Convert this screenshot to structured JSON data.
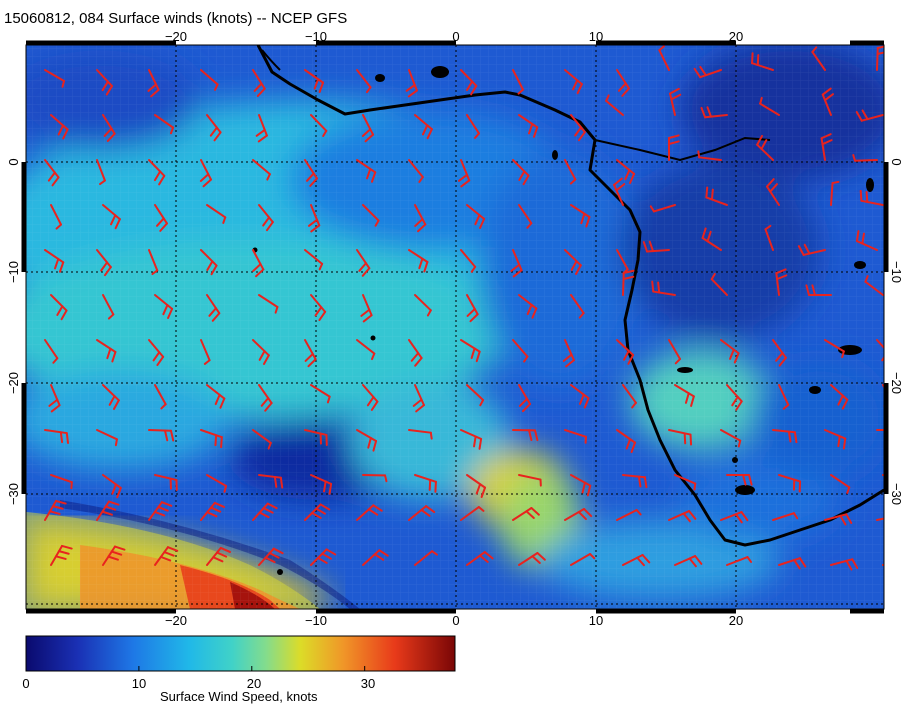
{
  "title": "15060812, 084 Surface winds (knots) -- NCEP GFS",
  "map": {
    "lon_range": [
      -30,
      31
    ],
    "lat_range": [
      -40,
      10
    ],
    "lon_ticks": [
      -20,
      -10,
      0,
      10,
      20
    ],
    "lat_ticks": [
      0,
      -10,
      -20,
      -30
    ],
    "lon_tick_labels": [
      "−20",
      "−10",
      "0",
      "10",
      "20"
    ],
    "lat_tick_labels": [
      "0",
      "−10",
      "−20",
      "−30"
    ],
    "gridlines": true,
    "barb_color": "#e8231e",
    "coast_color": "#000000"
  },
  "colorbar": {
    "title": "Surface Wind Speed, knots",
    "range": [
      0,
      38
    ],
    "ticks": [
      0,
      10,
      20,
      30
    ],
    "tick_labels": [
      "0",
      "10",
      "20",
      "30"
    ],
    "colors": [
      "#0a0a6e",
      "#1a30b4",
      "#1e78e6",
      "#20b8e8",
      "#40d2c8",
      "#84dc8c",
      "#dcdc28",
      "#f09628",
      "#e83a1a",
      "#9a0a0a"
    ]
  }
}
